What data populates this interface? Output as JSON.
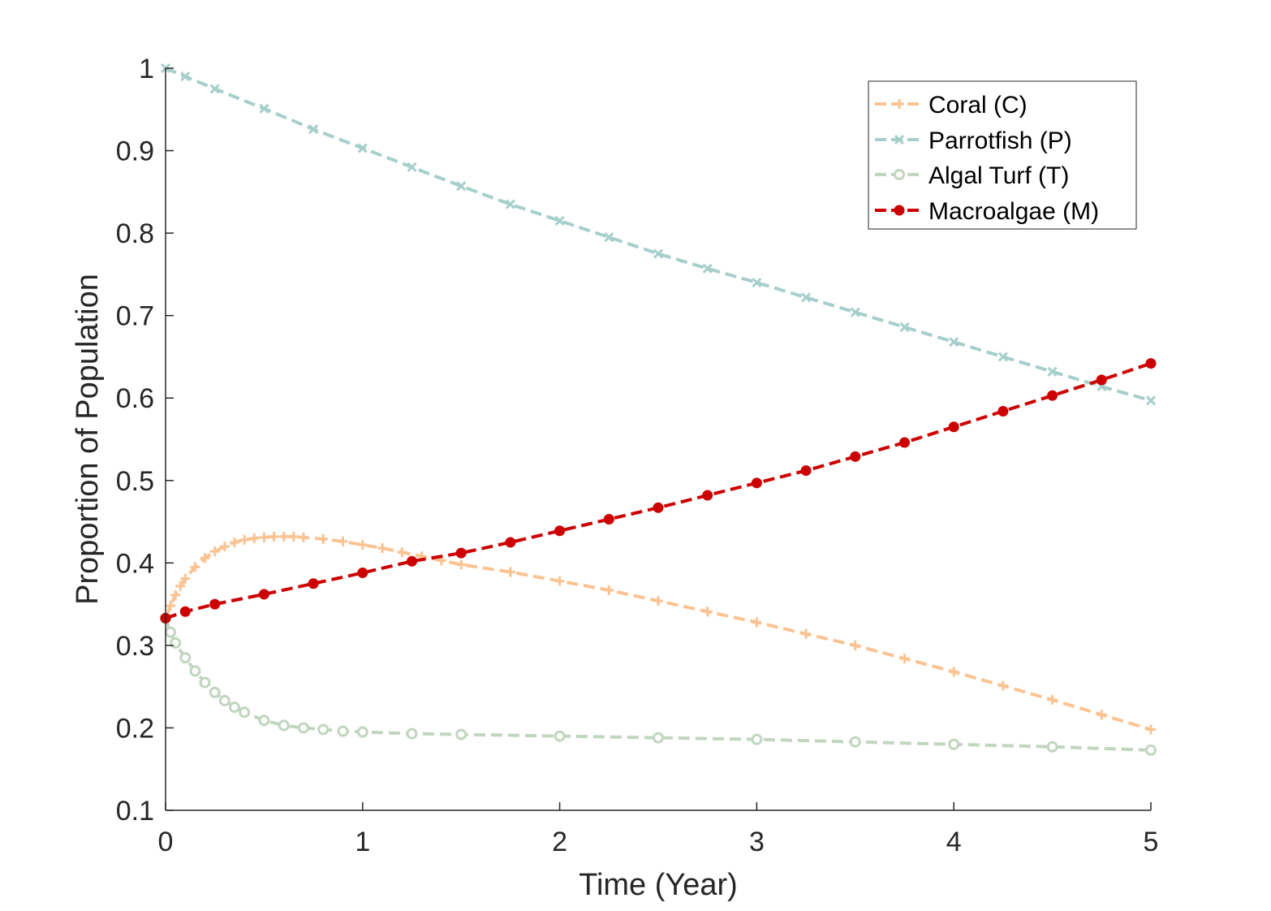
{
  "chart_data": {
    "type": "line",
    "title": "",
    "xlabel": "Time (Year)",
    "ylabel": "Proportion of Population",
    "xlim": [
      0,
      5
    ],
    "ylim": [
      0.1,
      1
    ],
    "xticks": [
      0,
      1,
      2,
      3,
      4,
      5
    ],
    "xtick_labels": [
      "0",
      "1",
      "2",
      "3",
      "4",
      "5"
    ],
    "yticks": [
      0.1,
      0.2,
      0.3,
      0.4,
      0.5,
      0.6,
      0.7,
      0.8,
      0.9,
      1
    ],
    "ytick_labels": [
      "0.1",
      "0.2",
      "0.3",
      "0.4",
      "0.5",
      "0.6",
      "0.7",
      "0.8",
      "0.9",
      "1"
    ],
    "grid": false,
    "legend_position": "top-right",
    "series": [
      {
        "name": "Coral (C)",
        "color": "#fcc392",
        "marker": "plus",
        "line_style": "dashed",
        "x": [
          0,
          0.025,
          0.05,
          0.075,
          0.1,
          0.15,
          0.2,
          0.25,
          0.3,
          0.35,
          0.4,
          0.45,
          0.5,
          0.55,
          0.6,
          0.65,
          0.7,
          0.8,
          0.9,
          1.0,
          1.1,
          1.2,
          1.3,
          1.4,
          1.5,
          1.75,
          2.0,
          2.25,
          2.5,
          2.75,
          3.0,
          3.25,
          3.5,
          3.75,
          4.0,
          4.25,
          4.5,
          4.75,
          5.0
        ],
        "y": [
          0.333,
          0.348,
          0.361,
          0.372,
          0.381,
          0.395,
          0.406,
          0.414,
          0.42,
          0.425,
          0.428,
          0.43,
          0.431,
          0.432,
          0.432,
          0.432,
          0.431,
          0.429,
          0.426,
          0.422,
          0.418,
          0.413,
          0.408,
          0.403,
          0.398,
          0.389,
          0.378,
          0.367,
          0.354,
          0.341,
          0.328,
          0.314,
          0.3,
          0.284,
          0.268,
          0.251,
          0.234,
          0.216,
          0.198
        ]
      },
      {
        "name": "Parrotfish (P)",
        "color": "#a6cfcb",
        "marker": "x",
        "line_style": "dashed",
        "x": [
          0,
          0.1,
          0.25,
          0.5,
          0.75,
          1.0,
          1.25,
          1.5,
          1.75,
          2.0,
          2.25,
          2.5,
          2.75,
          3.0,
          3.25,
          3.5,
          3.75,
          4.0,
          4.25,
          4.5,
          4.75,
          5.0
        ],
        "y": [
          1.0,
          0.99,
          0.975,
          0.951,
          0.926,
          0.903,
          0.88,
          0.857,
          0.835,
          0.815,
          0.795,
          0.775,
          0.757,
          0.74,
          0.722,
          0.704,
          0.686,
          0.668,
          0.65,
          0.632,
          0.614,
          0.597
        ]
      },
      {
        "name": "Algal Turf (T)",
        "color": "#c1d6bf",
        "marker": "circle",
        "line_style": "dashed",
        "x": [
          0,
          0.025,
          0.05,
          0.1,
          0.15,
          0.2,
          0.25,
          0.3,
          0.35,
          0.4,
          0.5,
          0.6,
          0.7,
          0.8,
          0.9,
          1.0,
          1.25,
          1.5,
          2.0,
          2.5,
          3.0,
          3.5,
          4.0,
          4.5,
          5.0
        ],
        "y": [
          0.333,
          0.316,
          0.303,
          0.285,
          0.269,
          0.255,
          0.243,
          0.233,
          0.225,
          0.219,
          0.209,
          0.203,
          0.2,
          0.198,
          0.196,
          0.195,
          0.193,
          0.192,
          0.19,
          0.188,
          0.186,
          0.183,
          0.18,
          0.177,
          0.173
        ]
      },
      {
        "name": "Macroalgae (M)",
        "color": "#cc0000",
        "marker": "filled-circle",
        "line_style": "dashed",
        "x": [
          0,
          0.1,
          0.25,
          0.5,
          0.75,
          1.0,
          1.25,
          1.5,
          1.75,
          2.0,
          2.25,
          2.5,
          2.75,
          3.0,
          3.25,
          3.5,
          3.75,
          4.0,
          4.25,
          4.5,
          4.75,
          5.0
        ],
        "y": [
          0.333,
          0.341,
          0.35,
          0.362,
          0.375,
          0.388,
          0.402,
          0.412,
          0.425,
          0.439,
          0.453,
          0.467,
          0.482,
          0.497,
          0.512,
          0.529,
          0.546,
          0.565,
          0.584,
          0.603,
          0.622,
          0.642
        ]
      }
    ]
  }
}
